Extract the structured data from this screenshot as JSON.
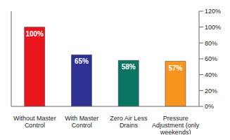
{
  "chart_data": {
    "type": "bar",
    "categories": [
      "Without Master Control",
      "With Master Control",
      "Zero Air Less Drains",
      "Pressure Adjustment (only weekends)"
    ],
    "values": [
      100,
      65,
      58,
      57
    ],
    "value_labels": [
      "100%",
      "65%",
      "58%",
      "57%"
    ],
    "data_labels": true,
    "colors": [
      "#e8161c",
      "#2e3192",
      "#0a7560",
      "#f7941d"
    ],
    "ylim": [
      0,
      120
    ],
    "yticks": [
      {
        "value": 0,
        "label": "0%"
      },
      {
        "value": 20,
        "label": "20%"
      },
      {
        "value": 40,
        "label": "40%"
      },
      {
        "value": 60,
        "label": "60%"
      },
      {
        "value": 80,
        "label": "80%"
      },
      {
        "value": 100,
        "label": "100%"
      },
      {
        "value": 120,
        "label": "120%"
      }
    ],
    "grid": false
  }
}
